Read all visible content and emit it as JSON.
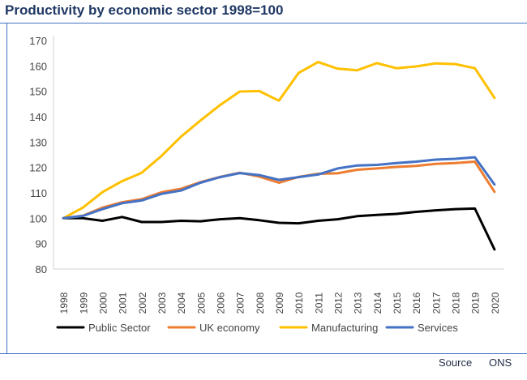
{
  "page": {
    "title": "Productivity by economic sector 1998=100",
    "source_label": "Source",
    "source_value": "ONS"
  },
  "chart_data": {
    "type": "line",
    "title": "Productivity by economic sector 1998=100",
    "xlabel": "",
    "ylabel": "",
    "ylim": [
      80,
      170
    ],
    "yticks": [
      80,
      90,
      100,
      110,
      120,
      130,
      140,
      150,
      160,
      170
    ],
    "grid": false,
    "legend_position": "bottom",
    "categories": [
      "1998",
      "1999",
      "2000",
      "2001",
      "2002",
      "2003",
      "2004",
      "2005",
      "2006",
      "2007",
      "2008",
      "2009",
      "2010",
      "2011",
      "2012",
      "2013",
      "2014",
      "2015",
      "2016",
      "2017",
      "2018",
      "2019",
      "2020"
    ],
    "series": [
      {
        "name": "Public Sector",
        "color": "#000000",
        "values": [
          100,
          100,
          99,
          100.5,
          98.5,
          98.5,
          99,
          98.8,
          99.6,
          100,
          99.2,
          98.2,
          98,
          99,
          99.6,
          100.8,
          101.3,
          101.7,
          102.5,
          103.1,
          103.6,
          103.8,
          87.7
        ]
      },
      {
        "name": "UK economy",
        "color": "#ed7d31",
        "values": [
          100,
          101,
          104.2,
          106.3,
          107.5,
          110.2,
          111.6,
          114.2,
          116.3,
          117.9,
          116.4,
          114,
          116.3,
          117.5,
          117.7,
          119.1,
          119.6,
          120.2,
          120.6,
          121.4,
          121.7,
          122.3,
          110.4
        ]
      },
      {
        "name": "Manufacturing",
        "color": "#ffc000",
        "values": [
          100,
          104.2,
          110.3,
          114.6,
          117.9,
          124.5,
          132.1,
          138.5,
          144.6,
          149.9,
          150.1,
          146.3,
          157.2,
          161.5,
          158.9,
          158.3,
          161.1,
          159.1,
          159.8,
          161,
          160.7,
          159.1,
          147.4
        ]
      },
      {
        "name": "Services",
        "color": "#4472c4",
        "values": [
          100,
          100.9,
          103.6,
          105.9,
          107,
          109.6,
          110.9,
          114,
          116.2,
          117.8,
          117,
          115.1,
          116.2,
          117.2,
          119.6,
          120.8,
          121,
          121.7,
          122.3,
          123.1,
          123.4,
          124,
          113.3
        ]
      }
    ]
  }
}
